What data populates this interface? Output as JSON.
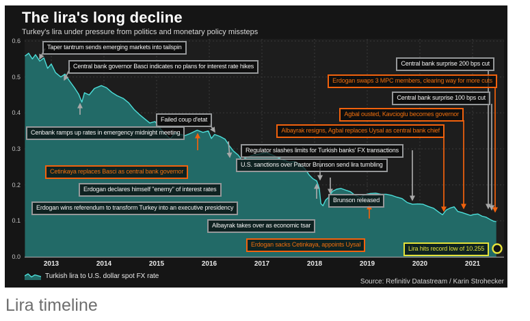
{
  "header": {
    "title": "The lira's long decline",
    "subtitle": "Turkey's lira under pressure from politics and monetary policy missteps"
  },
  "legend": {
    "label": "Turkish lira to U.S. dollar spot FX rate"
  },
  "footer": {
    "source": "Source: Refinitiv Datastream / Karin Strohecker"
  },
  "caption": "Lira timeline",
  "colors": {
    "panel_bg": "#151515",
    "plot_bg": "#1d1d1d",
    "grid": "#3a3a3a",
    "axis": "#9a9a9a",
    "line": "#4ddfda",
    "area": "#226a67",
    "gray_arrow": "#a8a8a8",
    "accent_orange": "#f2620d",
    "accent_yellow": "#e6e33a"
  },
  "chart_data": {
    "type": "area",
    "title": "The lira's long decline",
    "xlabel": "",
    "ylabel": "",
    "ylim": [
      0,
      0.6
    ],
    "x_range": [
      2013,
      2022
    ],
    "grid": true,
    "legend_position": "bottom-left",
    "x_ticks": [
      "2013",
      "2014",
      "2015",
      "2016",
      "2017",
      "2018",
      "2019",
      "2020",
      "2021"
    ],
    "y_ticks": [
      "0.0",
      "0.1",
      "0.2",
      "0.3",
      "0.4",
      "0.5",
      "0.6"
    ],
    "series": [
      {
        "name": "Turkish lira to U.S. dollar spot FX rate",
        "x_unit": "decimal year",
        "points": [
          [
            2013.0,
            0.558
          ],
          [
            2013.07,
            0.566
          ],
          [
            2013.14,
            0.55
          ],
          [
            2013.2,
            0.562
          ],
          [
            2013.28,
            0.544
          ],
          [
            2013.36,
            0.553
          ],
          [
            2013.43,
            0.524
          ],
          [
            2013.5,
            0.536
          ],
          [
            2013.58,
            0.512
          ],
          [
            2013.68,
            0.5
          ],
          [
            2013.76,
            0.508
          ],
          [
            2013.84,
            0.49
          ],
          [
            2013.94,
            0.47
          ],
          [
            2014.02,
            0.452
          ],
          [
            2014.08,
            0.43
          ],
          [
            2014.13,
            0.456
          ],
          [
            2014.22,
            0.45
          ],
          [
            2014.32,
            0.468
          ],
          [
            2014.45,
            0.476
          ],
          [
            2014.55,
            0.47
          ],
          [
            2014.65,
            0.457
          ],
          [
            2014.75,
            0.448
          ],
          [
            2014.87,
            0.44
          ],
          [
            2014.97,
            0.428
          ],
          [
            2015.07,
            0.41
          ],
          [
            2015.17,
            0.396
          ],
          [
            2015.27,
            0.384
          ],
          [
            2015.37,
            0.372
          ],
          [
            2015.47,
            0.376
          ],
          [
            2015.57,
            0.356
          ],
          [
            2015.67,
            0.34
          ],
          [
            2015.76,
            0.328
          ],
          [
            2015.86,
            0.346
          ],
          [
            2015.94,
            0.341
          ],
          [
            2016.04,
            0.337
          ],
          [
            2016.14,
            0.343
          ],
          [
            2016.27,
            0.352
          ],
          [
            2016.38,
            0.346
          ],
          [
            2016.48,
            0.35
          ],
          [
            2016.54,
            0.329
          ],
          [
            2016.6,
            0.34
          ],
          [
            2016.7,
            0.335
          ],
          [
            2016.8,
            0.327
          ],
          [
            2016.88,
            0.309
          ],
          [
            2016.96,
            0.294
          ],
          [
            2017.05,
            0.283
          ],
          [
            2017.12,
            0.269
          ],
          [
            2017.2,
            0.276
          ],
          [
            2017.32,
            0.282
          ],
          [
            2017.45,
            0.286
          ],
          [
            2017.58,
            0.29
          ],
          [
            2017.7,
            0.283
          ],
          [
            2017.82,
            0.275
          ],
          [
            2017.93,
            0.268
          ],
          [
            2018.02,
            0.263
          ],
          [
            2018.12,
            0.265
          ],
          [
            2018.22,
            0.257
          ],
          [
            2018.32,
            0.244
          ],
          [
            2018.4,
            0.227
          ],
          [
            2018.47,
            0.217
          ],
          [
            2018.54,
            0.211
          ],
          [
            2018.59,
            0.19
          ],
          [
            2018.62,
            0.148
          ],
          [
            2018.66,
            0.142
          ],
          [
            2018.71,
            0.158
          ],
          [
            2018.77,
            0.166
          ],
          [
            2018.84,
            0.182
          ],
          [
            2018.92,
            0.188
          ],
          [
            2019.0,
            0.19
          ],
          [
            2019.1,
            0.185
          ],
          [
            2019.18,
            0.181
          ],
          [
            2019.28,
            0.17
          ],
          [
            2019.37,
            0.165
          ],
          [
            2019.46,
            0.173
          ],
          [
            2019.56,
            0.176
          ],
          [
            2019.66,
            0.177
          ],
          [
            2019.76,
            0.174
          ],
          [
            2019.86,
            0.174
          ],
          [
            2019.96,
            0.171
          ],
          [
            2020.06,
            0.166
          ],
          [
            2020.16,
            0.162
          ],
          [
            2020.26,
            0.151
          ],
          [
            2020.36,
            0.146
          ],
          [
            2020.46,
            0.147
          ],
          [
            2020.56,
            0.146
          ],
          [
            2020.66,
            0.14
          ],
          [
            2020.76,
            0.135
          ],
          [
            2020.86,
            0.124
          ],
          [
            2020.93,
            0.117
          ],
          [
            2021.0,
            0.13
          ],
          [
            2021.08,
            0.136
          ],
          [
            2021.15,
            0.139
          ],
          [
            2021.22,
            0.126
          ],
          [
            2021.3,
            0.123
          ],
          [
            2021.38,
            0.119
          ],
          [
            2021.46,
            0.115
          ],
          [
            2021.53,
            0.118
          ],
          [
            2021.6,
            0.119
          ],
          [
            2021.68,
            0.113
          ],
          [
            2021.76,
            0.11
          ],
          [
            2021.83,
            0.104
          ],
          [
            2021.9,
            0.099
          ],
          [
            2021.95,
            0.0975
          ]
        ]
      }
    ],
    "annotations": [
      {
        "id": "taper",
        "color": "gray",
        "text": "Taper tantrum sends emerging markets into tailspin"
      },
      {
        "id": "basci",
        "color": "gray",
        "text": "Central bank governor Basci indicates no plans for interest rate hikes"
      },
      {
        "id": "cenbank",
        "color": "gray",
        "text": "Cenbank ramps up rates in emergency midnight meeting"
      },
      {
        "id": "coup",
        "color": "gray",
        "text": "Failed coup d'etat"
      },
      {
        "id": "cetinkaya",
        "color": "orange",
        "text": "Cetinkaya replaces Basci as central bank governor"
      },
      {
        "id": "enemy",
        "color": "gray",
        "text": "Erdogan declares himself \"enemy\" of interest rates"
      },
      {
        "id": "referendum",
        "color": "gray",
        "text": "Erdogan wins referendum to transform Turkey into an executive presidency"
      },
      {
        "id": "regulator",
        "color": "gray",
        "text": "Regulator slashes limits for Turkish banks' FX transactions"
      },
      {
        "id": "sanctions",
        "color": "gray",
        "text": "U.S. sanctions over Pastor Brunson send lira tumbling"
      },
      {
        "id": "tsar",
        "color": "gray",
        "text": "Albayrak takes over as economic tsar"
      },
      {
        "id": "brunson",
        "color": "gray",
        "text": "Brunson released"
      },
      {
        "id": "sacks",
        "color": "orange",
        "text": "Erdogan sacks Cetinkaya, appoints Uysal"
      },
      {
        "id": "resigns",
        "color": "orange",
        "text": "Albayrak resigns, Agbal replaces Uysal as central bank chief"
      },
      {
        "id": "agbal",
        "color": "orange",
        "text": "Agbal ousted, Kavcioglu becomes governor"
      },
      {
        "id": "cb100",
        "color": "gray",
        "text": "Central bank surprise 100 bps cut"
      },
      {
        "id": "swaps",
        "color": "orange",
        "text": "Erdogan swaps 3 MPC members, clearing way for more cuts"
      },
      {
        "id": "cb200",
        "color": "gray",
        "text": "Central bank surprise 200 bps cut"
      },
      {
        "id": "record",
        "color": "yellow",
        "text": "Lira hits record low of 10.255"
      }
    ]
  }
}
